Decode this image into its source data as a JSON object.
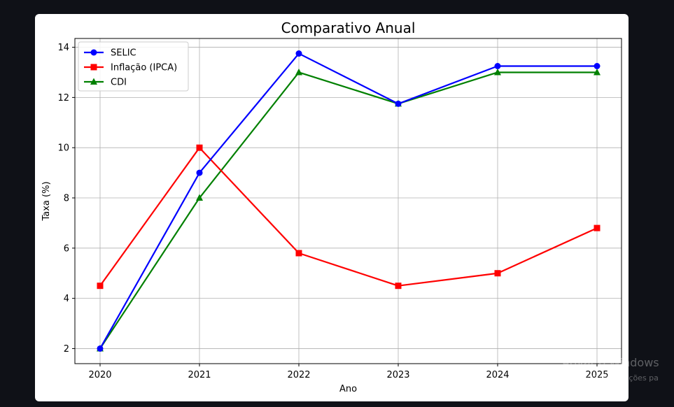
{
  "chart_data": {
    "type": "line",
    "title": "Comparativo Anual",
    "xlabel": "Ano",
    "ylabel": "Taxa (%)",
    "categories": [
      "2020",
      "2021",
      "2022",
      "2023",
      "2024",
      "2025"
    ],
    "yticks": [
      2,
      4,
      6,
      8,
      10,
      12,
      14
    ],
    "ylim": [
      1.4,
      14.35
    ],
    "grid": true,
    "legend_position": "top-left",
    "series": [
      {
        "name": "SELIC",
        "color": "#0000ff",
        "marker": "circle",
        "values": [
          2.0,
          9.0,
          13.75,
          11.75,
          13.25,
          13.25
        ]
      },
      {
        "name": "Inflação (IPCA)",
        "color": "#ff0000",
        "marker": "square",
        "values": [
          4.5,
          10.0,
          5.8,
          4.5,
          5.0,
          6.8
        ]
      },
      {
        "name": "CDI",
        "color": "#008000",
        "marker": "triangle",
        "values": [
          2.0,
          8.0,
          13.0,
          11.75,
          13.0,
          13.0
        ]
      }
    ]
  },
  "watermark": {
    "title": "Ativar o Windows",
    "subtitle": "Acesse Configurações pa"
  }
}
